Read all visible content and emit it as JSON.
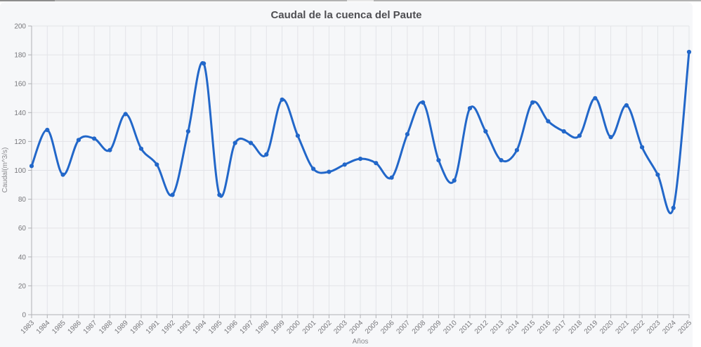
{
  "page": {
    "title": "Caudal de la cuenca del Paute"
  },
  "chart_data": {
    "type": "line",
    "title": "Caudal de la cuenca del Paute",
    "xlabel": "Años",
    "ylabel": "Caudal(m^3/s)",
    "categories": [
      1983,
      1984,
      1985,
      1986,
      1987,
      1988,
      1989,
      1990,
      1991,
      1992,
      1993,
      1994,
      1995,
      1996,
      1997,
      1998,
      1999,
      2000,
      2001,
      2002,
      2003,
      2004,
      2005,
      2006,
      2007,
      2008,
      2009,
      2010,
      2011,
      2012,
      2013,
      2014,
      2015,
      2016,
      2017,
      2018,
      2019,
      2020,
      2021,
      2022,
      2023,
      2024,
      2025
    ],
    "series": [
      {
        "name": "Caudal",
        "values": [
          103,
          128,
          97,
          121,
          122,
          114,
          139,
          115,
          104,
          83,
          127,
          174,
          83,
          119,
          119,
          111,
          149,
          124,
          101,
          99,
          104,
          108,
          105,
          95,
          125,
          147,
          107,
          93,
          143,
          127,
          107,
          114,
          147,
          134,
          127,
          124,
          150,
          123,
          145,
          116,
          97,
          74,
          182
        ]
      }
    ],
    "ylim": [
      0,
      200
    ],
    "ytick_step": 20,
    "grid": true,
    "legend_position": "none",
    "line_smoothing": "catmull-rom",
    "colors": {
      "line": "#2267c9",
      "marker": "#2267c9",
      "background": "#f6f7f9",
      "grid": "#e3e4e8",
      "axis": "#b0b1b5",
      "tick_text": "#77777b",
      "title_text": "#4e4e52"
    }
  }
}
